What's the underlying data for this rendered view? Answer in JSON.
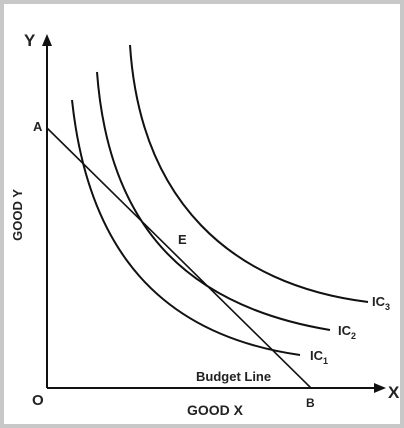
{
  "axes": {
    "y_label": "Y",
    "x_label": "X",
    "origin": "O",
    "y_title": "GOOD Y",
    "x_title": "GOOD X"
  },
  "points": {
    "a": "A",
    "b": "B",
    "e": "E"
  },
  "budget_line": "Budget Line",
  "curves": [
    {
      "label": "IC",
      "sub": "1"
    },
    {
      "label": "IC",
      "sub": "2"
    },
    {
      "label": "IC",
      "sub": "3"
    }
  ]
}
